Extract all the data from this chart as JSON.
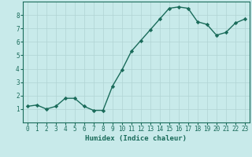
{
  "x": [
    0,
    1,
    2,
    3,
    4,
    5,
    6,
    7,
    8,
    9,
    10,
    11,
    12,
    13,
    14,
    15,
    16,
    17,
    18,
    19,
    20,
    21,
    22,
    23
  ],
  "y": [
    1.2,
    1.3,
    1.0,
    1.2,
    1.8,
    1.8,
    1.2,
    0.9,
    0.9,
    2.7,
    3.9,
    5.3,
    6.1,
    6.9,
    7.7,
    8.5,
    8.6,
    8.5,
    7.5,
    7.3,
    6.5,
    6.7,
    7.4,
    7.7
  ],
  "line_color": "#1a6b5a",
  "marker": "D",
  "markersize": 2.2,
  "linewidth": 1.0,
  "background_color": "#c8eaea",
  "grid_color": "#b0d4d4",
  "xlabel": "Humidex (Indice chaleur)",
  "xlabel_fontsize": 6.5,
  "tick_fontsize": 5.5,
  "ylim": [
    0,
    9
  ],
  "xlim": [
    -0.5,
    23.5
  ],
  "yticks": [
    1,
    2,
    3,
    4,
    5,
    6,
    7,
    8
  ],
  "xticks": [
    0,
    1,
    2,
    3,
    4,
    5,
    6,
    7,
    8,
    9,
    10,
    11,
    12,
    13,
    14,
    15,
    16,
    17,
    18,
    19,
    20,
    21,
    22,
    23
  ]
}
